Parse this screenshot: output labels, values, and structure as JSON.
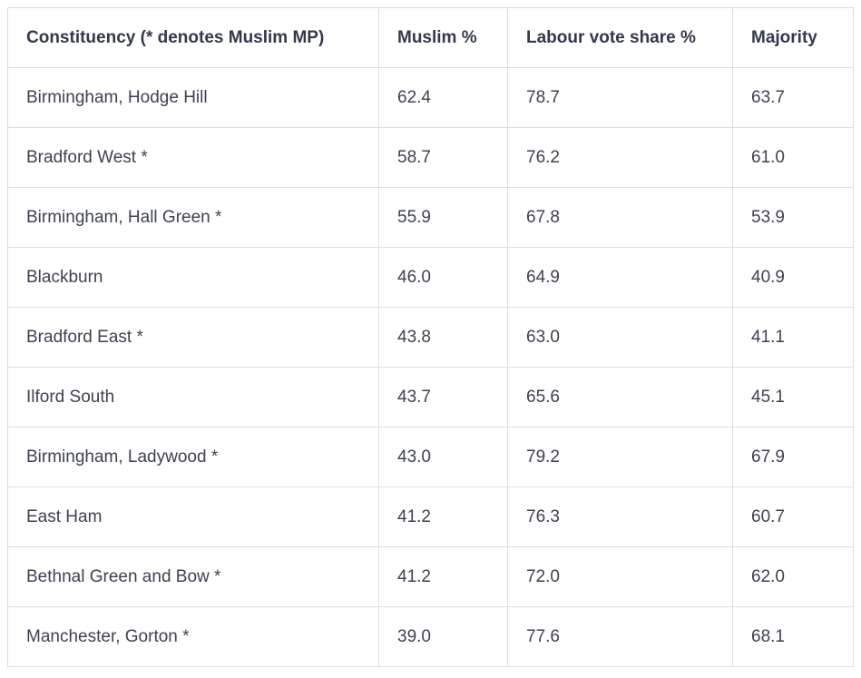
{
  "chart_data": {
    "type": "table",
    "columns": [
      "Constituency (* denotes Muslim MP)",
      "Muslim %",
      "Labour vote share %",
      "Majority"
    ],
    "rows": [
      [
        "Birmingham, Hodge Hill",
        "62.4",
        "78.7",
        "63.7"
      ],
      [
        "Bradford West *",
        "58.7",
        "76.2",
        "61.0"
      ],
      [
        "Birmingham, Hall Green *",
        "55.9",
        "67.8",
        "53.9"
      ],
      [
        "Blackburn",
        "46.0",
        "64.9",
        "40.9"
      ],
      [
        "Bradford East *",
        "43.8",
        "63.0",
        "41.1"
      ],
      [
        "Ilford South",
        "43.7",
        "65.6",
        "45.1"
      ],
      [
        "Birmingham, Ladywood *",
        "43.0",
        "79.2",
        "67.9"
      ],
      [
        "East Ham",
        "41.2",
        "76.3",
        "60.7"
      ],
      [
        "Bethnal Green and Bow *",
        "41.2",
        "72.0",
        "62.0"
      ],
      [
        "Manchester, Gorton *",
        "39.0",
        "77.6",
        "68.1"
      ]
    ],
    "grid": true
  },
  "colors": {
    "border": "#dcdde0",
    "header_text": "#33394a",
    "cell_text": "#3d4250",
    "background": "#ffffff"
  }
}
